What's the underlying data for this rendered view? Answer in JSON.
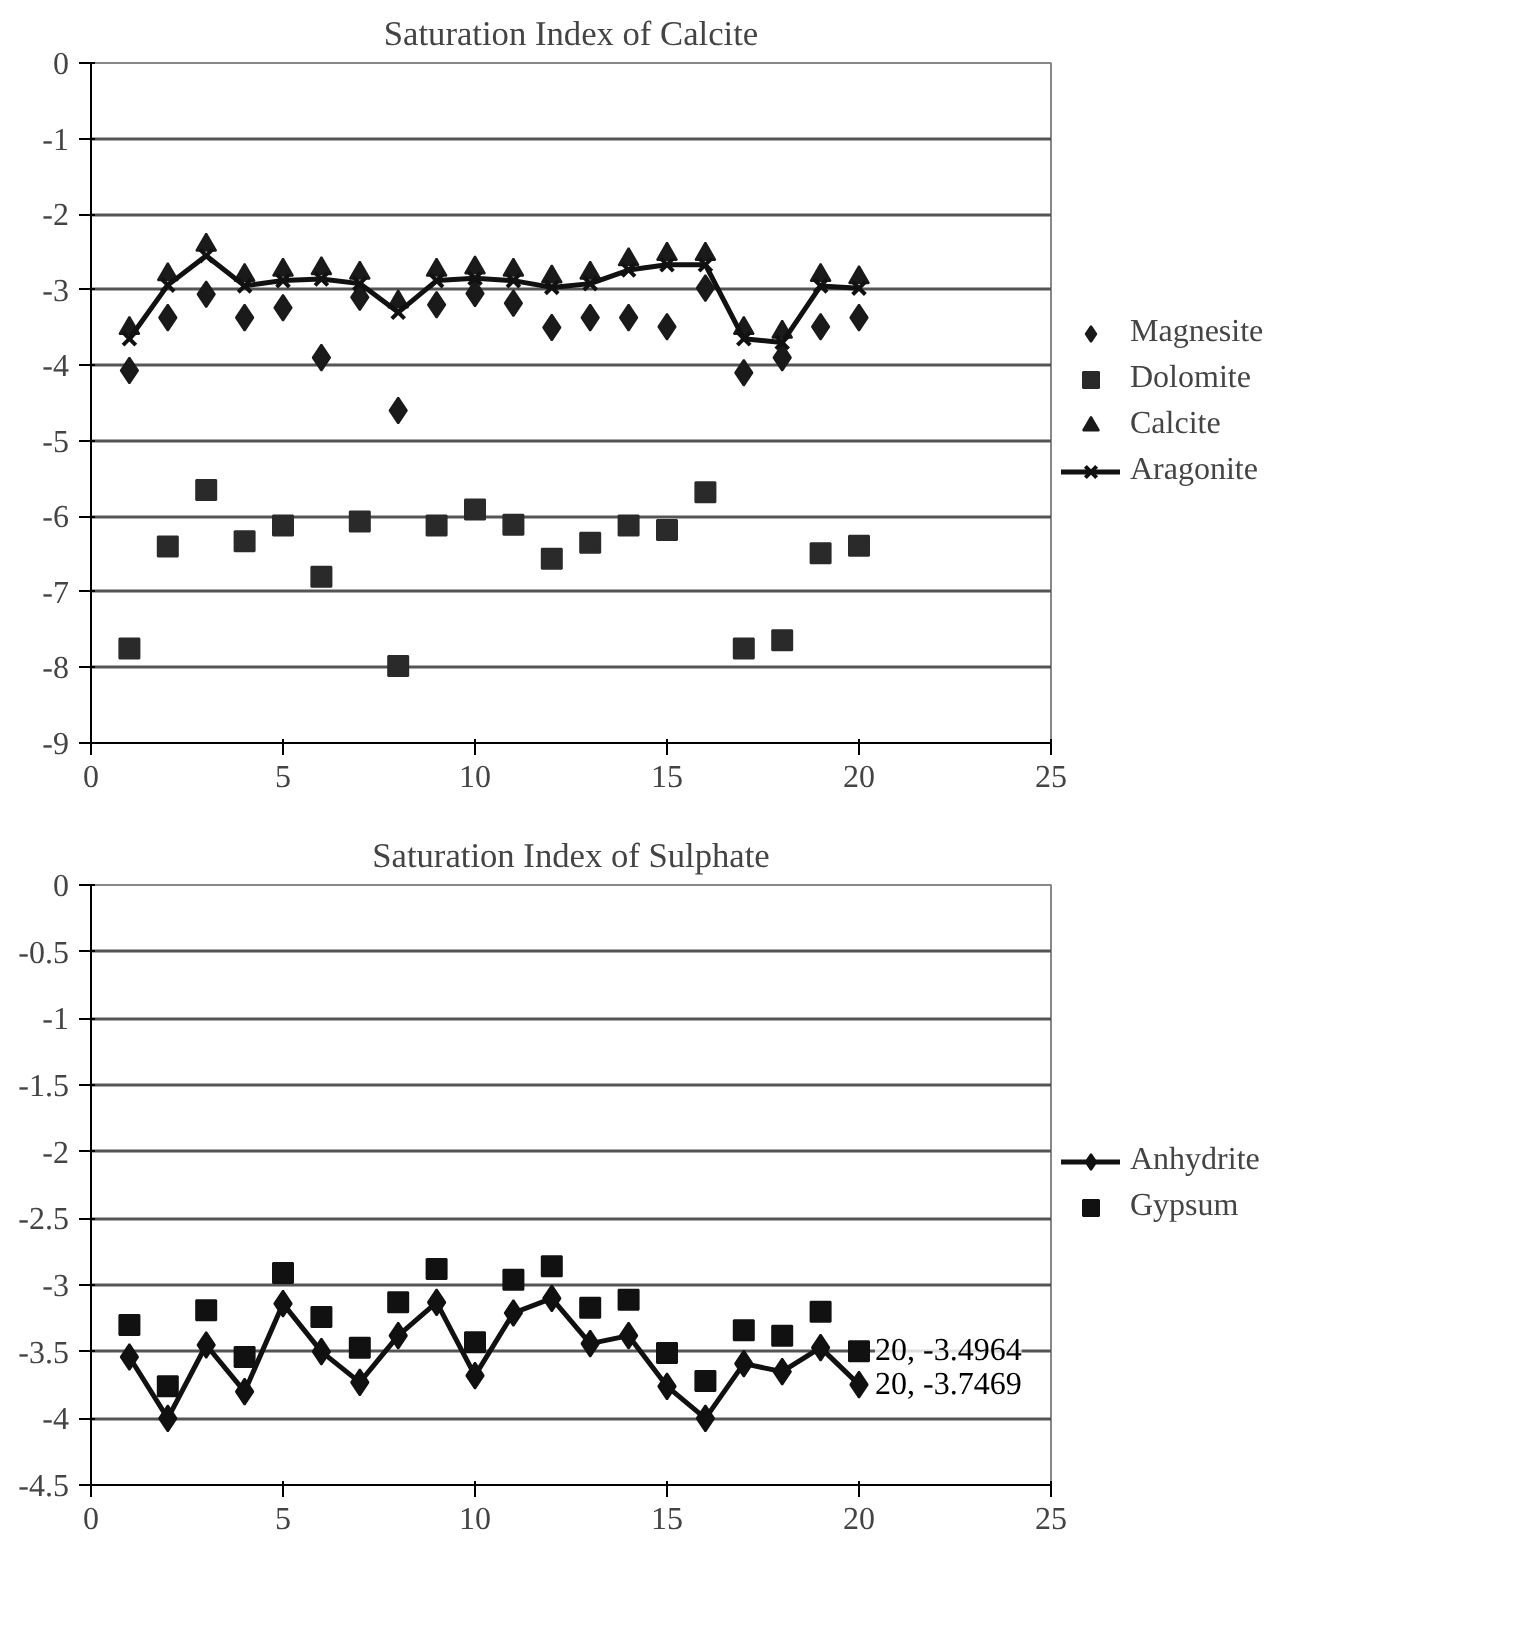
{
  "chart_data": [
    {
      "type": "scatter",
      "title": "Saturation Index of Calcite",
      "x": [
        1,
        2,
        3,
        4,
        5,
        6,
        7,
        8,
        9,
        10,
        11,
        12,
        13,
        14,
        15,
        16,
        17,
        18,
        19,
        20
      ],
      "xlim": [
        0,
        25
      ],
      "xticks": [
        0,
        5,
        10,
        15,
        20,
        25
      ],
      "ylim": [
        -9,
        0
      ],
      "yticks": [
        0,
        -1,
        -2,
        -3,
        -4,
        -5,
        -6,
        -7,
        -8,
        -9
      ],
      "grid": "y",
      "legend": "right",
      "series": [
        {
          "name": "Magnesite",
          "marker": "diamond",
          "color": "#1a1a1a",
          "values": [
            -4.07,
            -3.37,
            -3.06,
            -3.37,
            -3.24,
            -3.9,
            -3.1,
            -4.6,
            -3.2,
            -3.05,
            -3.18,
            -3.5,
            -3.37,
            -3.37,
            -3.49,
            -2.98,
            -4.1,
            -3.9,
            -3.49,
            -3.37
          ]
        },
        {
          "name": "Dolomite",
          "marker": "square",
          "color": "#2a2a2a",
          "values": [
            -7.75,
            -6.4,
            -5.65,
            -6.33,
            -6.12,
            -6.8,
            -6.07,
            -7.98,
            -6.12,
            -5.91,
            -6.11,
            -6.56,
            -6.35,
            -6.12,
            -6.18,
            -5.68,
            -7.75,
            -7.64,
            -6.49,
            -6.39
          ]
        },
        {
          "name": "Calcite",
          "marker": "triangle",
          "color": "#1a1a1a",
          "values": [
            -3.51,
            -2.8,
            -2.41,
            -2.81,
            -2.74,
            -2.72,
            -2.78,
            -3.16,
            -2.74,
            -2.71,
            -2.74,
            -2.83,
            -2.78,
            -2.6,
            -2.53,
            -2.53,
            -3.51,
            -3.56,
            -2.81,
            -2.84
          ]
        },
        {
          "name": "Aragonite",
          "type": "line",
          "marker": "cross",
          "color": "#111111",
          "values": [
            -3.65,
            -2.94,
            -2.55,
            -2.95,
            -2.88,
            -2.86,
            -2.92,
            -3.3,
            -2.88,
            -2.85,
            -2.88,
            -2.97,
            -2.92,
            -2.74,
            -2.67,
            -2.67,
            -3.65,
            -3.7,
            -2.95,
            -2.98
          ]
        }
      ]
    },
    {
      "type": "scatter",
      "title": "Saturation Index of Sulphate",
      "x": [
        1,
        2,
        3,
        4,
        5,
        6,
        7,
        8,
        9,
        10,
        11,
        12,
        13,
        14,
        15,
        16,
        17,
        18,
        19,
        20
      ],
      "xlim": [
        0,
        25
      ],
      "xticks": [
        0,
        5,
        10,
        15,
        20,
        25
      ],
      "ylim": [
        -4.5,
        0
      ],
      "yticks": [
        0,
        -0.5,
        -1,
        -1.5,
        -2,
        -2.5,
        -3,
        -3.5,
        -4,
        -4.5
      ],
      "grid": "y",
      "legend": "right",
      "series": [
        {
          "name": "Anhydrite",
          "type": "line",
          "marker": "diamond",
          "color": "#111111",
          "values": [
            -3.54,
            -4.0,
            -3.45,
            -3.8,
            -3.14,
            -3.5,
            -3.73,
            -3.38,
            -3.13,
            -3.68,
            -3.21,
            -3.1,
            -3.44,
            -3.38,
            -3.76,
            -4.0,
            -3.59,
            -3.65,
            -3.47,
            -3.7469
          ]
        },
        {
          "name": "Gypsum",
          "marker": "square",
          "color": "#111111",
          "values": [
            -3.3,
            -3.76,
            -3.19,
            -3.54,
            -2.91,
            -3.24,
            -3.47,
            -3.13,
            -2.88,
            -3.43,
            -2.96,
            -2.86,
            -3.17,
            -3.11,
            -3.51,
            -3.72,
            -3.34,
            -3.38,
            -3.2,
            -3.4964
          ]
        }
      ],
      "annotations": [
        {
          "text": "20, -3.4964",
          "x": 20,
          "y": -3.4964
        },
        {
          "text": "20, -3.7469",
          "x": 20,
          "y": -3.7469
        }
      ]
    }
  ]
}
